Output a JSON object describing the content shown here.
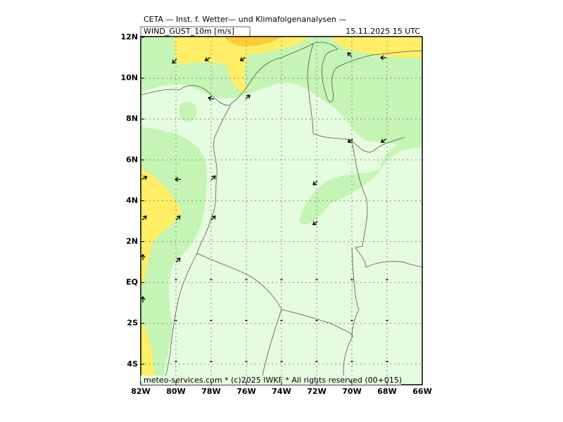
{
  "header": {
    "title": "CETA — Inst. f. Wetter— und Klimafolgenanalysen —",
    "field": "WIND_GUST_10m [m/s]",
    "datetime": "15.11.2025 15 UTC"
  },
  "axes": {
    "lat_labels": [
      "12N",
      "10N",
      "8N",
      "6N",
      "4N",
      "2N",
      "EQ",
      "2S",
      "4S"
    ],
    "lon_labels": [
      "82W",
      "80W",
      "78W",
      "76W",
      "74W",
      "72W",
      "70W",
      "68W",
      "66W"
    ]
  },
  "footer": "meteo-services.com * (c)2025 IWKF * All rights reserved (00+015)"
}
